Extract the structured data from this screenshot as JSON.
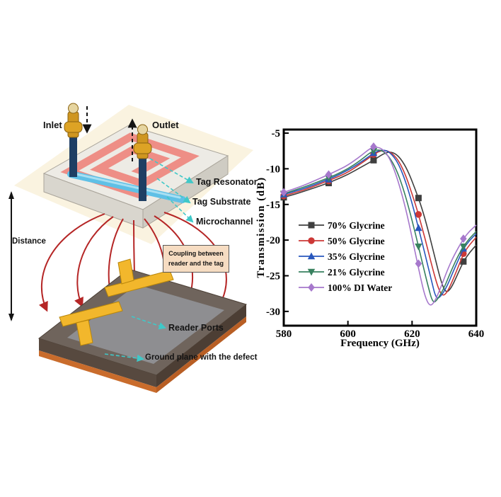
{
  "diagram": {
    "inlet_label": "Inlet",
    "outlet_label": "Outlet",
    "tag_resonator_label": "Tag Resonator",
    "tag_substrate_label": "Tag Substrate",
    "microchannel_label": "Microchannel",
    "distance_label": "Distance",
    "coupling_note_line1": "Coupling between",
    "coupling_note_line2": "reader and the tag",
    "reader_ports_label": "Reader Ports",
    "ground_plane_label": "Ground plane with the defect",
    "colors": {
      "resonator": "#ee8e86",
      "microchannel": "#5fc0e6",
      "field_lines": "#b52626",
      "leaders": "#3fc8c8",
      "reader_ports": "#f2b72c"
    }
  },
  "chart_data": {
    "type": "line",
    "title": "",
    "xlabel": "Frequency (GHz)",
    "ylabel": "Transmission (dB)",
    "xlim": [
      580,
      640
    ],
    "ylim": [
      -32,
      -4.5
    ],
    "xticks": [
      580,
      600,
      620,
      640
    ],
    "yticks": [
      -5,
      -10,
      -15,
      -20,
      -25,
      -30
    ],
    "grid": false,
    "legend_position": "inside-left",
    "series": [
      {
        "name": "70% Glycrine",
        "color": "#3f3f3f",
        "marker": "square",
        "points": [
          [
            580,
            -14
          ],
          [
            584,
            -13.5
          ],
          [
            588,
            -12.9
          ],
          [
            592,
            -12.3
          ],
          [
            596,
            -11.6
          ],
          [
            600,
            -10.8
          ],
          [
            604,
            -9.8
          ],
          [
            608,
            -8.8
          ],
          [
            611,
            -7.9
          ],
          [
            613,
            -7.6
          ],
          [
            615,
            -7.9
          ],
          [
            617,
            -8.9
          ],
          [
            619,
            -10.6
          ],
          [
            621,
            -12.9
          ],
          [
            623,
            -15.4
          ],
          [
            625,
            -18.6
          ],
          [
            627,
            -22.2
          ],
          [
            629,
            -25.8
          ],
          [
            630.5,
            -27.4
          ],
          [
            632,
            -26.9
          ],
          [
            634,
            -25
          ],
          [
            636,
            -23
          ],
          [
            638,
            -21.7
          ],
          [
            640,
            -20.7
          ]
        ],
        "markers": [
          [
            580,
            -14
          ],
          [
            594,
            -12
          ],
          [
            608,
            -8.8
          ],
          [
            622,
            -14.1
          ],
          [
            636,
            -23
          ]
        ]
      },
      {
        "name": "50% Glycrine",
        "color": "#cc3836",
        "marker": "circle",
        "points": [
          [
            580,
            -13.8
          ],
          [
            584,
            -13.3
          ],
          [
            588,
            -12.7
          ],
          [
            592,
            -12
          ],
          [
            596,
            -11.3
          ],
          [
            600,
            -10.5
          ],
          [
            604,
            -9.3
          ],
          [
            608,
            -8
          ],
          [
            610,
            -7.5
          ],
          [
            612,
            -7.4
          ],
          [
            614,
            -7.9
          ],
          [
            616,
            -9
          ],
          [
            618,
            -10.9
          ],
          [
            620,
            -13.5
          ],
          [
            622,
            -16.4
          ],
          [
            624,
            -19.7
          ],
          [
            626,
            -23.3
          ],
          [
            628,
            -26.6
          ],
          [
            629.5,
            -27.9
          ],
          [
            631,
            -27.3
          ],
          [
            633,
            -25.3
          ],
          [
            636,
            -21.9
          ],
          [
            638,
            -20.6
          ],
          [
            640,
            -19.6
          ]
        ],
        "markers": [
          [
            580,
            -13.8
          ],
          [
            594,
            -11.7
          ],
          [
            608,
            -8
          ],
          [
            622,
            -16.4
          ],
          [
            636,
            -21.9
          ]
        ]
      },
      {
        "name": "35% Glycrine",
        "color": "#2857bd",
        "marker": "triangle-up",
        "points": [
          [
            580,
            -13.6
          ],
          [
            584,
            -13.1
          ],
          [
            588,
            -12.5
          ],
          [
            592,
            -11.8
          ],
          [
            596,
            -11.1
          ],
          [
            600,
            -10.2
          ],
          [
            604,
            -9.1
          ],
          [
            608,
            -7.8
          ],
          [
            610,
            -7.4
          ],
          [
            612,
            -7.4
          ],
          [
            614,
            -8.1
          ],
          [
            616,
            -9.5
          ],
          [
            618,
            -11.8
          ],
          [
            620,
            -14.8
          ],
          [
            622,
            -18.3
          ],
          [
            624,
            -21.9
          ],
          [
            626,
            -25.6
          ],
          [
            627.5,
            -28.3
          ],
          [
            629,
            -27.9
          ],
          [
            631,
            -26.4
          ],
          [
            633,
            -24.2
          ],
          [
            636,
            -21.2
          ],
          [
            638,
            -20
          ],
          [
            640,
            -19.1
          ]
        ],
        "markers": [
          [
            580,
            -13.6
          ],
          [
            594,
            -11.5
          ],
          [
            608,
            -7.8
          ],
          [
            622,
            -18.3
          ],
          [
            636,
            -21.2
          ]
        ]
      },
      {
        "name": "21% Glycrine",
        "color": "#38815f",
        "marker": "triangle-down",
        "points": [
          [
            580,
            -13.5
          ],
          [
            584,
            -12.9
          ],
          [
            588,
            -12.3
          ],
          [
            592,
            -11.6
          ],
          [
            596,
            -10.9
          ],
          [
            600,
            -10
          ],
          [
            604,
            -8.8
          ],
          [
            607,
            -7.7
          ],
          [
            609,
            -7.3
          ],
          [
            611,
            -7.5
          ],
          [
            613,
            -8.4
          ],
          [
            615,
            -10
          ],
          [
            617,
            -12.4
          ],
          [
            619,
            -15.5
          ],
          [
            621,
            -19
          ],
          [
            623,
            -22.8
          ],
          [
            625,
            -26.5
          ],
          [
            626.5,
            -28.9
          ],
          [
            628,
            -28.3
          ],
          [
            630,
            -26.7
          ],
          [
            632,
            -24.5
          ],
          [
            634,
            -22.5
          ],
          [
            636,
            -20.9
          ],
          [
            638,
            -19.7
          ],
          [
            640,
            -18.8
          ]
        ],
        "markers": [
          [
            580,
            -13.5
          ],
          [
            594,
            -11.3
          ],
          [
            608,
            -7.5
          ],
          [
            622,
            -20.9
          ],
          [
            636,
            -20.9
          ]
        ]
      },
      {
        "name": "100% DI Water",
        "color": "#a678cc",
        "marker": "diamond",
        "points": [
          [
            580,
            -13.3
          ],
          [
            584,
            -12.7
          ],
          [
            588,
            -12
          ],
          [
            592,
            -11.2
          ],
          [
            596,
            -10.4
          ],
          [
            600,
            -9.5
          ],
          [
            604,
            -8.2
          ],
          [
            607,
            -7.1
          ],
          [
            609,
            -6.9
          ],
          [
            611,
            -7.3
          ],
          [
            613,
            -8.5
          ],
          [
            615,
            -10.8
          ],
          [
            617,
            -13.8
          ],
          [
            619,
            -17.5
          ],
          [
            621,
            -21.8
          ],
          [
            622.5,
            -25
          ],
          [
            624,
            -27.9
          ],
          [
            625.5,
            -29.3
          ],
          [
            627,
            -28.7
          ],
          [
            629,
            -26.6
          ],
          [
            631,
            -24.2
          ],
          [
            633,
            -22.2
          ],
          [
            636,
            -19.8
          ],
          [
            638,
            -18.7
          ],
          [
            640,
            -17.9
          ]
        ],
        "markers": [
          [
            580,
            -13.3
          ],
          [
            594,
            -10.8
          ],
          [
            608,
            -6.9
          ],
          [
            622,
            -23.3
          ],
          [
            636,
            -19.8
          ]
        ]
      }
    ]
  }
}
